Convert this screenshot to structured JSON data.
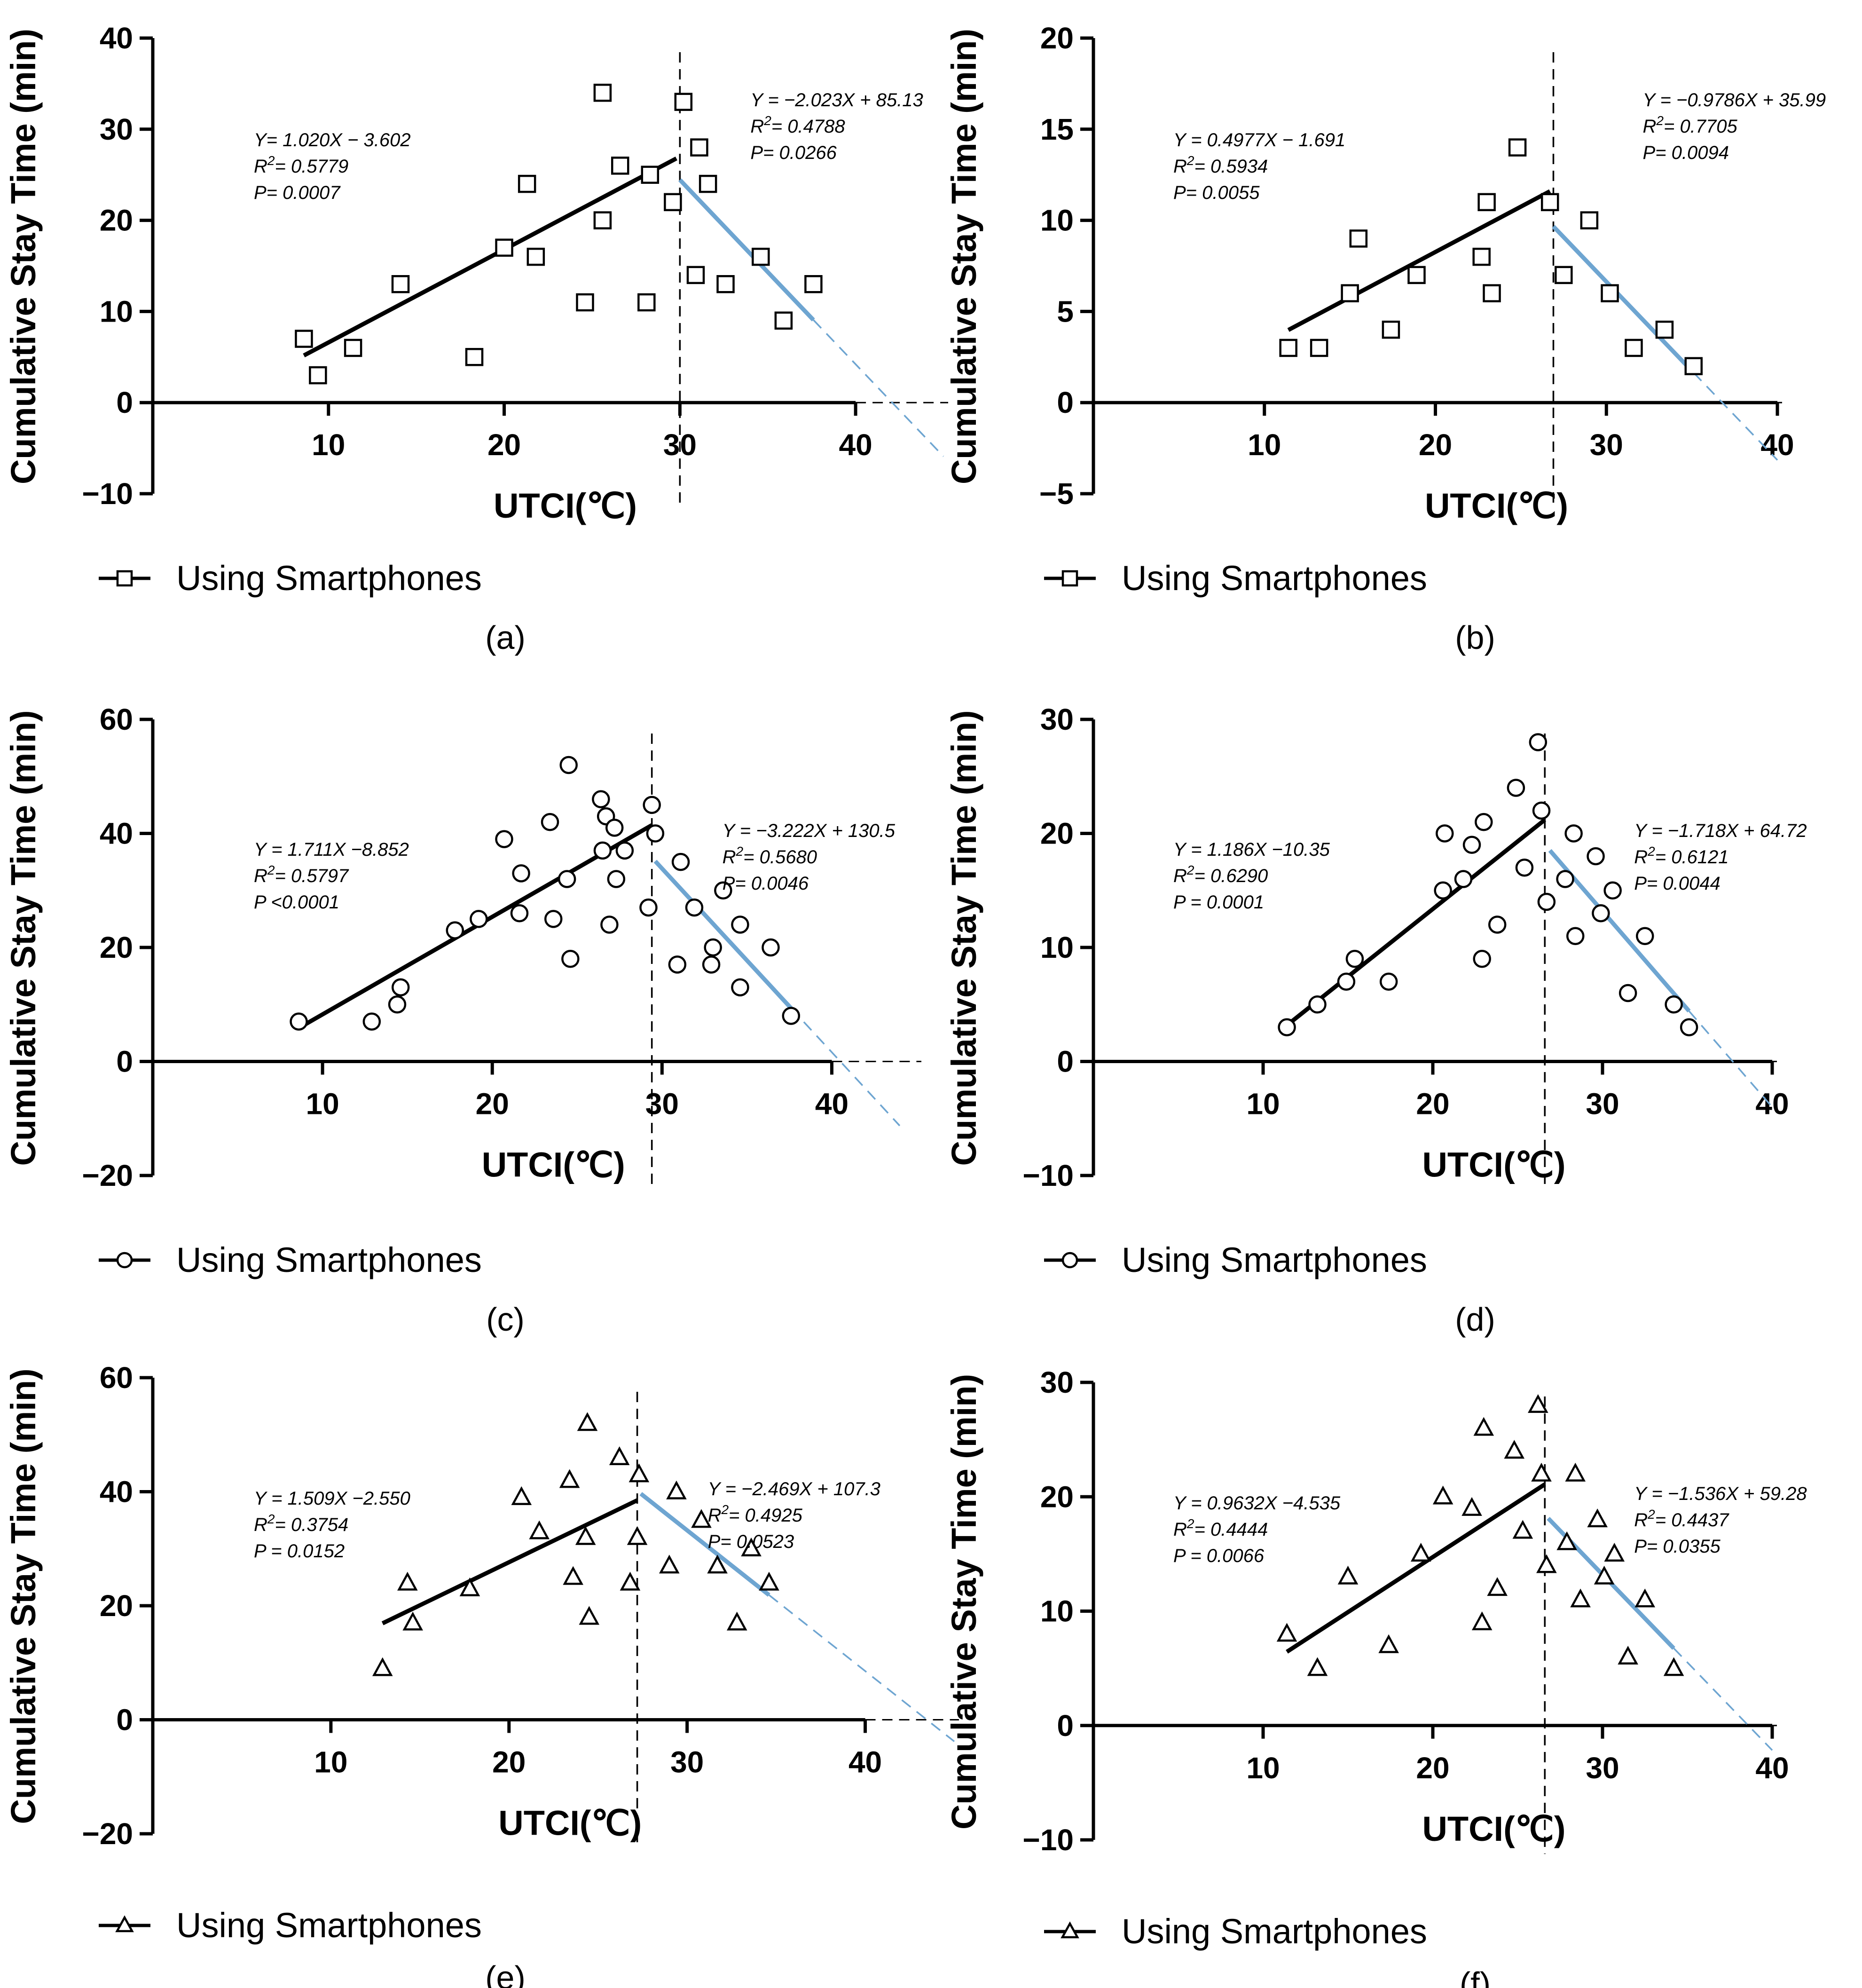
{
  "chart_data": [
    {
      "type": "scatter",
      "panel_label": "(a)",
      "xlabel": "UTCI(℃)",
      "ylabel": "Cumulative Stay Time (min)",
      "xlim": [
        0,
        45
      ],
      "ylim": [
        -10,
        40
      ],
      "xticks": [
        10,
        20,
        30,
        40
      ],
      "yticks": [
        -10,
        0,
        10,
        20,
        30,
        40
      ],
      "marker": "square",
      "legend": "Using Smartphones",
      "breakpoint": 30.0,
      "points": [
        [
          8.6,
          7
        ],
        [
          9.4,
          3
        ],
        [
          11.4,
          6
        ],
        [
          14.1,
          13
        ],
        [
          18.3,
          5
        ],
        [
          20.0,
          17
        ],
        [
          21.3,
          24
        ],
        [
          21.8,
          16
        ],
        [
          24.6,
          11
        ],
        [
          25.6,
          34
        ],
        [
          25.6,
          20
        ],
        [
          26.6,
          26
        ],
        [
          28.1,
          11
        ],
        [
          28.3,
          25
        ],
        [
          29.6,
          22
        ],
        [
          30.2,
          33
        ],
        [
          30.9,
          14
        ],
        [
          31.1,
          28
        ],
        [
          31.6,
          24
        ],
        [
          32.6,
          13
        ],
        [
          34.6,
          16
        ],
        [
          35.9,
          9
        ],
        [
          37.6,
          13
        ]
      ],
      "fits": [
        {
          "equation": "Y=  1.020X − 3.602",
          "r2": "0.5779",
          "p": "P= 0.0007",
          "slope": 1.02,
          "intercept": -3.602,
          "x_range": [
            8.6,
            29.8
          ],
          "extend_to": 29.8,
          "color": "#000000"
        },
        {
          "equation": "Y = −2.023X + 85.13",
          "r2": "0.4788",
          "p": "P= 0.0266",
          "slope": -2.023,
          "intercept": 85.13,
          "x_range": [
            30.0,
            37.6
          ],
          "extend_to": 45.0,
          "color": "#6ea5d1"
        }
      ]
    },
    {
      "type": "scatter",
      "panel_label": "(b)",
      "xlabel": "UTCI(℃)",
      "ylabel": "Cumulative Stay Time (min)",
      "xlim": [
        0,
        40
      ],
      "ylim": [
        -5,
        20
      ],
      "xticks": [
        10,
        20,
        30,
        40
      ],
      "yticks": [
        -5,
        0,
        5,
        10,
        15,
        20
      ],
      "marker": "square",
      "legend": "Using Smartphones",
      "breakpoint": 26.9,
      "points": [
        [
          11.4,
          3
        ],
        [
          13.2,
          3
        ],
        [
          15.0,
          6
        ],
        [
          15.5,
          9
        ],
        [
          17.4,
          4
        ],
        [
          18.9,
          7
        ],
        [
          22.7,
          8
        ],
        [
          23.0,
          11
        ],
        [
          23.3,
          6
        ],
        [
          24.8,
          14
        ],
        [
          26.7,
          11
        ],
        [
          27.5,
          7
        ],
        [
          29.0,
          10
        ],
        [
          30.2,
          6
        ],
        [
          31.6,
          3
        ],
        [
          33.4,
          4
        ],
        [
          35.1,
          2
        ]
      ],
      "fits": [
        {
          "equation": "Y = 0.4977X − 1.691",
          "r2": "0.5934",
          "p": "P= 0.0055",
          "slope": 0.4977,
          "intercept": -1.691,
          "x_range": [
            11.4,
            26.7
          ],
          "extend_to": 26.7,
          "color": "#000000"
        },
        {
          "equation": "Y = −0.9786X + 35.99",
          "r2": "0.7705",
          "p": "P= 0.0094",
          "slope": -0.9786,
          "intercept": 35.99,
          "x_range": [
            26.9,
            35.1
          ],
          "extend_to": 40.0,
          "color": "#6ea5d1"
        }
      ]
    },
    {
      "type": "scatter",
      "panel_label": "(c)",
      "xlabel": "UTCI(℃)",
      "ylabel": "Cumulative Stay Time (min)",
      "xlim": [
        0,
        45
      ],
      "ylim": [
        -20,
        60
      ],
      "xticks": [
        10,
        20,
        30,
        40
      ],
      "yticks": [
        -20,
        0,
        20,
        40,
        60
      ],
      "marker": "circle",
      "legend": "Using Smartphones",
      "breakpoint": 29.4,
      "points": [
        [
          8.6,
          7
        ],
        [
          12.9,
          7
        ],
        [
          14.4,
          10
        ],
        [
          14.6,
          13
        ],
        [
          17.8,
          23
        ],
        [
          19.2,
          25
        ],
        [
          20.7,
          39
        ],
        [
          21.6,
          26
        ],
        [
          21.7,
          33
        ],
        [
          23.4,
          42
        ],
        [
          23.6,
          25
        ],
        [
          24.4,
          32
        ],
        [
          24.5,
          52
        ],
        [
          24.6,
          18
        ],
        [
          26.4,
          46
        ],
        [
          26.5,
          37
        ],
        [
          26.7,
          43
        ],
        [
          26.9,
          24
        ],
        [
          27.2,
          41
        ],
        [
          27.3,
          32
        ],
        [
          27.8,
          37
        ],
        [
          29.2,
          27
        ],
        [
          29.4,
          45
        ],
        [
          29.6,
          40
        ],
        [
          30.9,
          17
        ],
        [
          31.1,
          35
        ],
        [
          31.9,
          27
        ],
        [
          32.9,
          17
        ],
        [
          33.0,
          20
        ],
        [
          33.6,
          30
        ],
        [
          34.6,
          24
        ],
        [
          34.6,
          13
        ],
        [
          36.4,
          20
        ],
        [
          37.6,
          8
        ]
      ],
      "fits": [
        {
          "equation": "Y = 1.711X −8.852",
          "r2": "0.5797",
          "p": "P <0.0001",
          "slope": 1.711,
          "intercept": -8.852,
          "x_range": [
            8.6,
            29.4
          ],
          "extend_to": 29.4,
          "color": "#000000"
        },
        {
          "equation": "Y = −3.222X + 130.5",
          "r2": "0.5680",
          "p": "P= 0.0046",
          "slope": -3.222,
          "intercept": 130.5,
          "x_range": [
            29.6,
            37.6
          ],
          "extend_to": 44.0,
          "color": "#6ea5d1"
        }
      ]
    },
    {
      "type": "scatter",
      "panel_label": "(d)",
      "xlabel": "UTCI(℃)",
      "ylabel": "Cumulative Stay Time (min)",
      "xlim": [
        0,
        40
      ],
      "ylim": [
        -10,
        30
      ],
      "xticks": [
        10,
        20,
        30,
        40
      ],
      "yticks": [
        -10,
        0,
        10,
        20,
        30
      ],
      "marker": "circle",
      "legend": "Using Smartphones",
      "breakpoint": 26.6,
      "points": [
        [
          11.4,
          3
        ],
        [
          13.2,
          5
        ],
        [
          14.9,
          7
        ],
        [
          15.4,
          9
        ],
        [
          17.4,
          7
        ],
        [
          20.6,
          15
        ],
        [
          20.7,
          20
        ],
        [
          21.8,
          16
        ],
        [
          22.3,
          19
        ],
        [
          22.9,
          9
        ],
        [
          23.0,
          21
        ],
        [
          23.8,
          12
        ],
        [
          24.9,
          24
        ],
        [
          25.4,
          17
        ],
        [
          26.2,
          28
        ],
        [
          26.4,
          22
        ],
        [
          26.7,
          14
        ],
        [
          27.8,
          16
        ],
        [
          28.4,
          11
        ],
        [
          28.3,
          20
        ],
        [
          29.6,
          18
        ],
        [
          29.9,
          13
        ],
        [
          30.6,
          15
        ],
        [
          31.5,
          6
        ],
        [
          32.5,
          11
        ],
        [
          34.2,
          5
        ],
        [
          35.1,
          3
        ]
      ],
      "fits": [
        {
          "equation": "Y = 1.186X −10.35",
          "r2": "0.6290",
          "p": "P = 0.0001",
          "slope": 1.186,
          "intercept": -10.35,
          "x_range": [
            11.4,
            26.6
          ],
          "extend_to": 26.6,
          "color": "#000000"
        },
        {
          "equation": "Y = −1.718X + 64.72",
          "r2": "0.6121",
          "p": "P= 0.0044",
          "slope": -1.718,
          "intercept": 64.72,
          "x_range": [
            26.9,
            35.1
          ],
          "extend_to": 40.0,
          "color": "#6ea5d1"
        }
      ]
    },
    {
      "type": "scatter",
      "panel_label": "(e)",
      "xlabel": "UTCI(℃)",
      "ylabel": "Cumulative Stay Time (min)",
      "xlim": [
        0,
        45
      ],
      "ylim": [
        -20,
        60
      ],
      "xticks": [
        10,
        20,
        30,
        40
      ],
      "yticks": [
        -20,
        0,
        20,
        40,
        60
      ],
      "marker": "triangle",
      "legend": "Using Smartphones",
      "breakpoint": 27.2,
      "points": [
        [
          12.9,
          9
        ],
        [
          14.3,
          24
        ],
        [
          14.6,
          17
        ],
        [
          17.8,
          23
        ],
        [
          20.7,
          39
        ],
        [
          21.7,
          33
        ],
        [
          23.4,
          42
        ],
        [
          23.6,
          25
        ],
        [
          24.3,
          32
        ],
        [
          24.4,
          52
        ],
        [
          24.5,
          18
        ],
        [
          26.2,
          46
        ],
        [
          26.8,
          24
        ],
        [
          27.2,
          32
        ],
        [
          27.3,
          43
        ],
        [
          29.0,
          27
        ],
        [
          29.4,
          40
        ],
        [
          30.8,
          35
        ],
        [
          31.7,
          27
        ],
        [
          32.8,
          17
        ],
        [
          33.6,
          30
        ],
        [
          34.6,
          24
        ]
      ],
      "fits": [
        {
          "equation": "Y = 1.509X −2.550",
          "r2": "0.3754",
          "p": "P = 0.0152",
          "slope": 1.509,
          "intercept": -2.55,
          "x_range": [
            12.9,
            27.2
          ],
          "extend_to": 27.2,
          "color": "#000000"
        },
        {
          "equation": "Y = −2.469X + 107.3",
          "r2": "0.4925",
          "p": "P= 0.0523",
          "slope": -2.469,
          "intercept": 107.3,
          "x_range": [
            27.4,
            34.6
          ],
          "extend_to": 45.0,
          "color": "#6ea5d1"
        }
      ]
    },
    {
      "type": "scatter",
      "panel_label": "(f)",
      "xlabel": "UTCI(℃)",
      "ylabel": "Cumulative Stay Time (min)",
      "xlim": [
        0,
        40
      ],
      "ylim": [
        -10,
        30
      ],
      "xticks": [
        10,
        20,
        30,
        40
      ],
      "yticks": [
        -10,
        0,
        10,
        20,
        30
      ],
      "marker": "triangle",
      "legend": "Using Smartphones",
      "breakpoint": 26.6,
      "points": [
        [
          11.4,
          8
        ],
        [
          13.2,
          5
        ],
        [
          15.0,
          13
        ],
        [
          17.4,
          7
        ],
        [
          19.3,
          15
        ],
        [
          20.6,
          20
        ],
        [
          22.3,
          19
        ],
        [
          22.9,
          9
        ],
        [
          23.0,
          26
        ],
        [
          23.8,
          12
        ],
        [
          24.8,
          24
        ],
        [
          25.3,
          17
        ],
        [
          26.2,
          28
        ],
        [
          26.4,
          22
        ],
        [
          26.7,
          14
        ],
        [
          27.9,
          16
        ],
        [
          28.4,
          22
        ],
        [
          28.7,
          11
        ],
        [
          29.7,
          18
        ],
        [
          30.1,
          13
        ],
        [
          30.7,
          15
        ],
        [
          31.5,
          6
        ],
        [
          32.5,
          11
        ],
        [
          34.2,
          5
        ]
      ],
      "fits": [
        {
          "equation": "Y = 0.9632X −4.535",
          "r2": "0.4444",
          "p": "P = 0.0066",
          "slope": 0.9632,
          "intercept": -4.535,
          "x_range": [
            11.4,
            26.6
          ],
          "extend_to": 26.6,
          "color": "#000000"
        },
        {
          "equation": "Y = −1.536X + 59.28",
          "r2": "0.4437",
          "p": "P= 0.0355",
          "slope": -1.536,
          "intercept": 59.28,
          "x_range": [
            26.8,
            34.2
          ],
          "extend_to": 40.0,
          "color": "#6ea5d1"
        }
      ]
    }
  ]
}
